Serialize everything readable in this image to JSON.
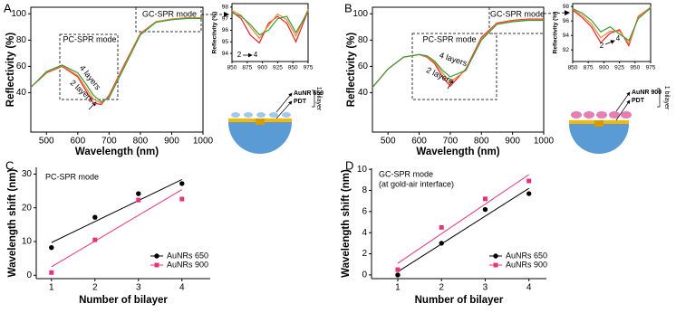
{
  "chart_data": [
    {
      "type": "line",
      "panel": "A",
      "xlabel": "Wavelength (nm)",
      "ylabel": "Reflectivity (%)",
      "xlim": [
        450,
        1000
      ],
      "ylim": [
        10,
        105
      ],
      "xticks": [
        500,
        600,
        700,
        800,
        900,
        1000
      ],
      "yticks": [
        40,
        60,
        80,
        100
      ],
      "x": [
        450,
        500,
        550,
        600,
        625,
        650,
        675,
        700,
        750,
        800,
        850,
        900,
        950,
        1000
      ],
      "series": [
        {
          "color": "#e8202a",
          "values": [
            44,
            55,
            60,
            52,
            42,
            32,
            31,
            38,
            62,
            85,
            94,
            96,
            97,
            97
          ]
        },
        {
          "color": "#f08a2a",
          "values": [
            44,
            55.5,
            60.5,
            53,
            44,
            35,
            32,
            37,
            61,
            84.5,
            94,
            96,
            97,
            97
          ]
        },
        {
          "color": "#3a9a3a",
          "values": [
            44,
            56,
            61,
            55,
            47,
            38,
            33,
            36,
            60,
            84,
            93.5,
            95.5,
            96.5,
            96.5
          ]
        }
      ],
      "annotations": [
        {
          "text": "PC-SPR mode"
        },
        {
          "text": "GC-SPR mode"
        },
        {
          "text": "4 layers",
          "color": "#2e8b3a"
        },
        {
          "text": "2 layers",
          "color": "#d8232a"
        }
      ]
    },
    {
      "type": "line",
      "ylabel": "Reflectivity (%)",
      "xlim": [
        850,
        975
      ],
      "ylim": [
        93.3,
        98.3
      ],
      "xticks": [
        850,
        875,
        900,
        925,
        950,
        975
      ],
      "yticks": [
        94,
        95,
        96,
        97,
        98
      ],
      "x": [
        850,
        865,
        880,
        895,
        910,
        925,
        940,
        955,
        975
      ],
      "series": [
        {
          "color": "#e8202a",
          "values": [
            97.6,
            97.0,
            95.6,
            94.9,
            96.6,
            97.2,
            96.6,
            95.0,
            97.7
          ]
        },
        {
          "color": "#f08a2a",
          "values": [
            97.7,
            97.3,
            96.3,
            95.3,
            96.4,
            97.4,
            96.9,
            95.5,
            97.8
          ]
        },
        {
          "color": "#3a9a3a",
          "values": [
            97.5,
            97.2,
            96.5,
            95.6,
            96.0,
            97.0,
            97.2,
            95.8,
            97.6
          ]
        }
      ],
      "annotations": [
        {
          "text": "2",
          "color": "#d8232a"
        },
        {
          "text": "4",
          "color": "#2e8b3a"
        }
      ]
    },
    {
      "type": "line",
      "panel": "B",
      "xlabel": "Wavelength (nm)",
      "ylabel": "Reflectivity (%)",
      "xlim": [
        450,
        1000
      ],
      "ylim": [
        10,
        105
      ],
      "xticks": [
        500,
        600,
        700,
        800,
        900,
        1000
      ],
      "yticks": [
        40,
        60,
        80,
        100
      ],
      "x": [
        450,
        500,
        550,
        600,
        625,
        650,
        675,
        700,
        750,
        800,
        850,
        900,
        950,
        1000
      ],
      "series": [
        {
          "color": "#e8202a",
          "values": [
            44,
            58,
            67,
            69,
            67,
            62,
            52,
            45,
            58,
            82,
            93,
            95,
            96,
            96
          ]
        },
        {
          "color": "#f08a2a",
          "values": [
            44,
            58,
            67,
            69,
            67.5,
            63,
            55,
            48,
            57,
            81,
            92.5,
            94.5,
            95.5,
            95.5
          ]
        },
        {
          "color": "#3a9a3a",
          "values": [
            44,
            58,
            67,
            69,
            68,
            64,
            57,
            52,
            57,
            80,
            92,
            94,
            95,
            95
          ]
        }
      ],
      "annotations": [
        {
          "text": "PC-SPR mode"
        },
        {
          "text": "GC-SPR mode"
        },
        {
          "text": "4 layers",
          "color": "#2e8b3a"
        },
        {
          "text": "2 layers",
          "color": "#d8232a"
        }
      ]
    },
    {
      "type": "line",
      "ylabel": "Reflectivity (%)",
      "xlim": [
        850,
        975
      ],
      "ylim": [
        90.4,
        98.4
      ],
      "xticks": [
        850,
        875,
        900,
        925,
        950,
        975
      ],
      "yticks": [
        92,
        94,
        96,
        98
      ],
      "x": [
        850,
        865,
        880,
        895,
        910,
        925,
        940,
        955,
        975
      ],
      "series": [
        {
          "color": "#e8202a",
          "values": [
            97.5,
            96.5,
            95.2,
            93.0,
            94.3,
            94.8,
            92.6,
            96.6,
            97.9
          ]
        },
        {
          "color": "#f08a2a",
          "values": [
            97.6,
            96.8,
            95.6,
            93.7,
            94.6,
            94.6,
            92.9,
            96.5,
            97.9
          ]
        },
        {
          "color": "#3a9a3a",
          "values": [
            97.7,
            97.1,
            96.1,
            94.5,
            95.2,
            94.2,
            93.3,
            96.3,
            97.8
          ]
        }
      ],
      "annotations": [
        {
          "text": "2",
          "color": "#d8232a"
        },
        {
          "text": "4",
          "color": "#2e8b3a"
        }
      ]
    },
    {
      "type": "scatter",
      "panel": "C",
      "xlabel": "Number of bilayer",
      "ylabel": "Wavelength shift (nm)",
      "xlim": [
        0.65,
        4.65
      ],
      "ylim": [
        -1,
        32
      ],
      "xticks": [
        1,
        2,
        3,
        4
      ],
      "yticks": [
        0,
        10,
        20,
        30
      ],
      "legend": "lower right",
      "series": [
        {
          "name": "AuNRs 650",
          "color": "#000000",
          "marker": "circle",
          "x": [
            1,
            2,
            3,
            4
          ],
          "values": [
            8.2,
            17.2,
            24.2,
            27.2
          ],
          "fit": {
            "x": [
              1,
              4
            ],
            "values": [
              9.7,
              28.4
            ]
          }
        },
        {
          "name": "AuNRs 900",
          "color": "#e8337a",
          "marker": "square",
          "x": [
            1,
            2,
            3,
            4
          ],
          "values": [
            0.8,
            10.5,
            22.3,
            22.6
          ],
          "fit": {
            "x": [
              1,
              4
            ],
            "values": [
              2.5,
              25.4
            ]
          }
        }
      ],
      "annotations": [
        {
          "text": "PC-SPR mode"
        }
      ]
    },
    {
      "type": "scatter",
      "panel": "D",
      "xlabel": "Number of bilayer",
      "ylabel": "Wavelength shift (nm)",
      "xlim": [
        0.4,
        4.4
      ],
      "ylim": [
        -0.35,
        10.1
      ],
      "xticks": [
        1,
        2,
        3,
        4
      ],
      "yticks": [
        0,
        2,
        4,
        6,
        8,
        10
      ],
      "legend": "lower right",
      "series": [
        {
          "name": "AuNRs 650",
          "color": "#000000",
          "marker": "circle",
          "x": [
            1,
            2,
            3,
            4
          ],
          "values": [
            0,
            3,
            6.2,
            7.7
          ],
          "fit": {
            "x": [
              1,
              4
            ],
            "values": [
              0.3,
              8.2
            ]
          }
        },
        {
          "name": "AuNRs 900",
          "color": "#e8337a",
          "marker": "square",
          "x": [
            1,
            2,
            3,
            4
          ],
          "values": [
            0.5,
            4.5,
            7.2,
            8.9
          ],
          "fit": {
            "x": [
              1,
              4
            ],
            "values": [
              1.1,
              9.5
            ]
          }
        }
      ],
      "annotations": [
        {
          "text": "GC-SPR mode"
        },
        {
          "text": "(at gold-air interface)"
        }
      ]
    }
  ],
  "schematics": [
    {
      "labels": [
        "AuNR 650",
        "PDT"
      ],
      "bracket": "1 bilayer"
    },
    {
      "labels": [
        "AuNR 900",
        "PDT"
      ],
      "bracket": "1 bilayer"
    }
  ]
}
